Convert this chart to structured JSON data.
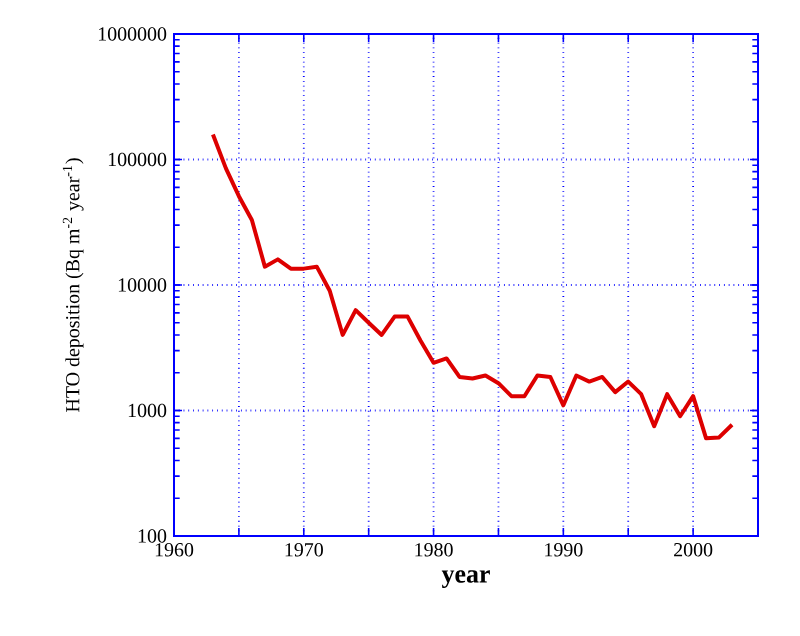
{
  "chart_data": {
    "type": "line",
    "xlabel": "year",
    "ylabel": "HTO deposition (Bq m$^{-2}$ year$^{-1}$)",
    "x": [
      1963,
      1964,
      1965,
      1966,
      1967,
      1968,
      1969,
      1970,
      1971,
      1972,
      1973,
      1974,
      1975,
      1976,
      1977,
      1978,
      1979,
      1980,
      1981,
      1982,
      1983,
      1984,
      1985,
      1986,
      1987,
      1988,
      1989,
      1990,
      1991,
      1992,
      1993,
      1994,
      1995,
      1996,
      1997,
      1998,
      1999,
      2000,
      2001,
      2002,
      2003
    ],
    "series": [
      {
        "color": "#dd0000",
        "values": [
          158000,
          85000,
          51000,
          33000,
          14000,
          16000,
          13500,
          13500,
          14000,
          9000,
          4000,
          6300,
          5000,
          4000,
          5600,
          5600,
          3600,
          2400,
          2600,
          1850,
          1800,
          1900,
          1650,
          1300,
          1300,
          1900,
          1850,
          1100,
          1900,
          1700,
          1850,
          1400,
          1700,
          1350,
          750,
          1350,
          900,
          1300,
          600,
          610,
          770
        ]
      }
    ],
    "xlim": [
      1960,
      2005
    ],
    "xticks": [
      1960,
      {
        "value": 1965,
        "label": null
      },
      1970,
      {
        "value": 1975,
        "label": null
      },
      1980,
      {
        "value": 1985,
        "label": null
      },
      1990,
      {
        "value": 1995,
        "label": null
      },
      2000,
      {
        "value": 2005,
        "label": null
      }
    ],
    "ylim": [
      100,
      1000000
    ],
    "yticks": [
      100,
      1000,
      10000,
      100000,
      1000000
    ],
    "log": "y",
    "grid": true,
    "line_style": "solid",
    "marker": "none"
  }
}
